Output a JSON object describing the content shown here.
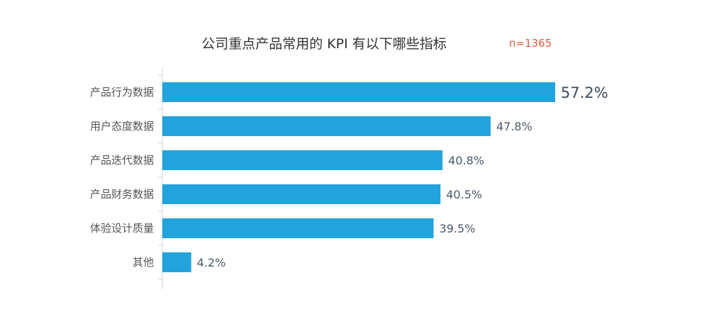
{
  "chart_data": {
    "type": "bar",
    "orientation": "horizontal",
    "title": "公司重点产品常用的 KPI 有以下哪些指标",
    "sample_size": "n=1365",
    "categories": [
      "产品行为数据",
      "用户态度数据",
      "产品迭代数据",
      "产品财务数据",
      "体验设计质量",
      "其他"
    ],
    "values": [
      57.2,
      47.8,
      40.8,
      40.5,
      39.5,
      4.2
    ],
    "value_labels": [
      "57.2%",
      "47.8%",
      "40.8%",
      "40.5%",
      "39.5%",
      "4.2%"
    ],
    "unit": "%",
    "xlim": [
      0,
      57.2
    ],
    "bar_color": "#23a3dc",
    "grid": false,
    "legend": "none"
  }
}
